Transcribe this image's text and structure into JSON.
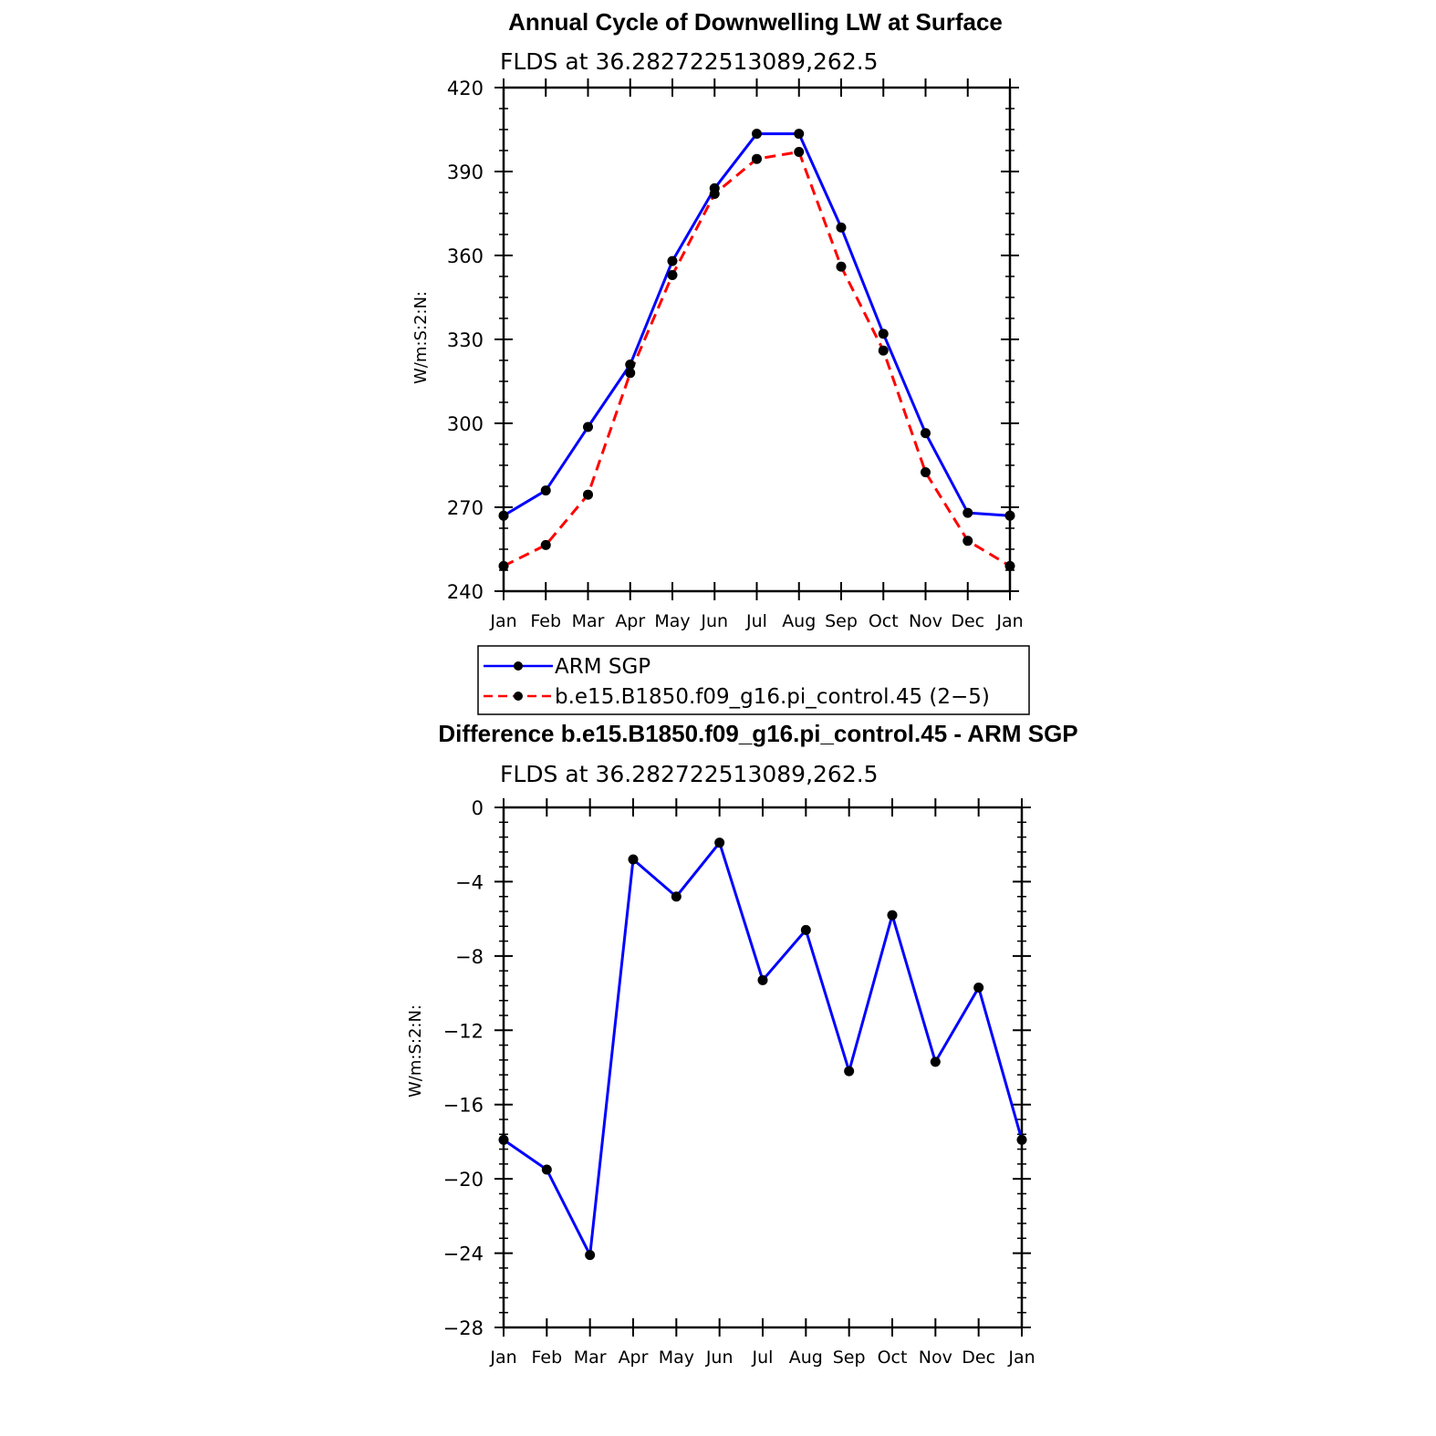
{
  "chart_data": [
    {
      "type": "line",
      "title": "Annual Cycle of Downwelling LW at Surface",
      "subtitle": "FLDS at 36.282722513089,262.5",
      "ylabel": "W/m:S:2:N:",
      "xlabel": "",
      "ylim": [
        240,
        420
      ],
      "yticks": [
        240,
        270,
        300,
        330,
        360,
        390,
        420
      ],
      "categories": [
        "Jan",
        "Feb",
        "Mar",
        "Apr",
        "May",
        "Jun",
        "Jul",
        "Aug",
        "Sep",
        "Oct",
        "Nov",
        "Dec",
        "Jan"
      ],
      "grid": false,
      "legend_position": "below",
      "series": [
        {
          "name": "ARM SGP",
          "color": "#0000ff",
          "dash": "solid",
          "values": [
            267.0,
            276.0,
            298.7,
            321.0,
            358.0,
            384.0,
            403.5,
            403.5,
            370.0,
            332.0,
            296.5,
            268.0,
            267.0
          ]
        },
        {
          "name": "b.e15.B1850.f09_g16.pi_control.45 (2−5)",
          "color": "#ff0000",
          "dash": "dashed",
          "values": [
            249.0,
            256.5,
            274.5,
            318.0,
            353.0,
            382.0,
            394.5,
            397.0,
            356.0,
            326.0,
            282.5,
            258.0,
            249.0
          ]
        }
      ]
    },
    {
      "type": "line",
      "title": "Difference b.e15.B1850.f09_g16.pi_control.45 - ARM SGP",
      "subtitle": "FLDS at 36.282722513089,262.5",
      "ylabel": "W/m:S:2:N:",
      "xlabel": "",
      "ylim": [
        -28,
        0
      ],
      "yticks": [
        -28,
        -24,
        -20,
        -16,
        -12,
        -8,
        -4,
        0
      ],
      "ytick_labels": [
        "−28",
        "−24",
        "−20",
        "−16",
        "−12",
        "−8",
        "−4",
        "0"
      ],
      "categories": [
        "Jan",
        "Feb",
        "Mar",
        "Apr",
        "May",
        "Jun",
        "Jul",
        "Aug",
        "Sep",
        "Oct",
        "Nov",
        "Dec",
        "Jan"
      ],
      "grid": false,
      "series": [
        {
          "color": "#0000ff",
          "dash": "solid",
          "values": [
            -17.9,
            -19.5,
            -24.1,
            -2.8,
            -4.8,
            -1.9,
            -9.3,
            -6.6,
            -14.2,
            -5.8,
            -13.7,
            -9.7,
            -17.9
          ]
        }
      ]
    }
  ]
}
